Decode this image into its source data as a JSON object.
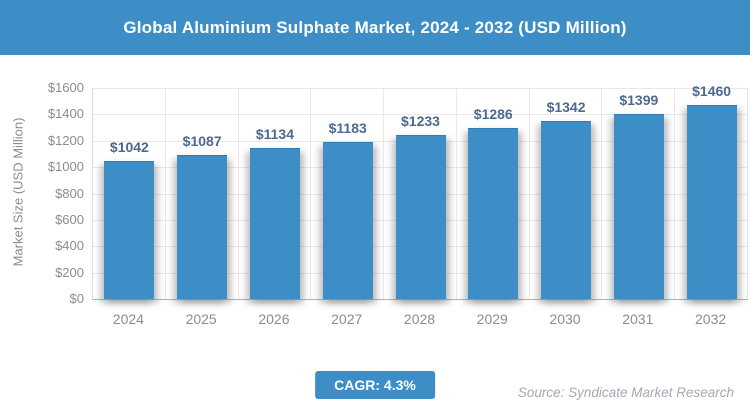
{
  "header": {
    "title": "Global Aluminium Sulphate Market, 2024 - 2032 (USD Million)"
  },
  "chart_data": {
    "type": "bar",
    "title": "Global Aluminium Sulphate Market, 2024 - 2032 (USD Million)",
    "categories": [
      "2024",
      "2025",
      "2026",
      "2027",
      "2028",
      "2029",
      "2030",
      "2031",
      "2032"
    ],
    "values": [
      1042,
      1087,
      1134,
      1183,
      1233,
      1286,
      1342,
      1399,
      1460
    ],
    "value_labels": [
      "$1042",
      "$1087",
      "$1134",
      "$1183",
      "$1233",
      "$1286",
      "$1342",
      "$1399",
      "$1460"
    ],
    "xlabel": "",
    "ylabel": "Market Size (USD Million)",
    "ylim": [
      0,
      1600
    ],
    "ytick_step": 200,
    "ytick_labels": [
      "$0",
      "$200",
      "$400",
      "$600",
      "$800",
      "$1000",
      "$1200",
      "$1400",
      "$1600"
    ],
    "grid": true,
    "legend": false
  },
  "footer": {
    "cagr_label": "CAGR: 4.3%",
    "source": "Source: Syndicate Market Research"
  },
  "colors": {
    "accent_blue": "#3d8ec6",
    "value_label_text": "#4d6990",
    "axis_text": "#8c8c8c",
    "gridline": "#e8e8e8",
    "axis_line": "#dcdcdc",
    "baseline": "#b3b3b3",
    "source_text": "#a2aab3"
  }
}
